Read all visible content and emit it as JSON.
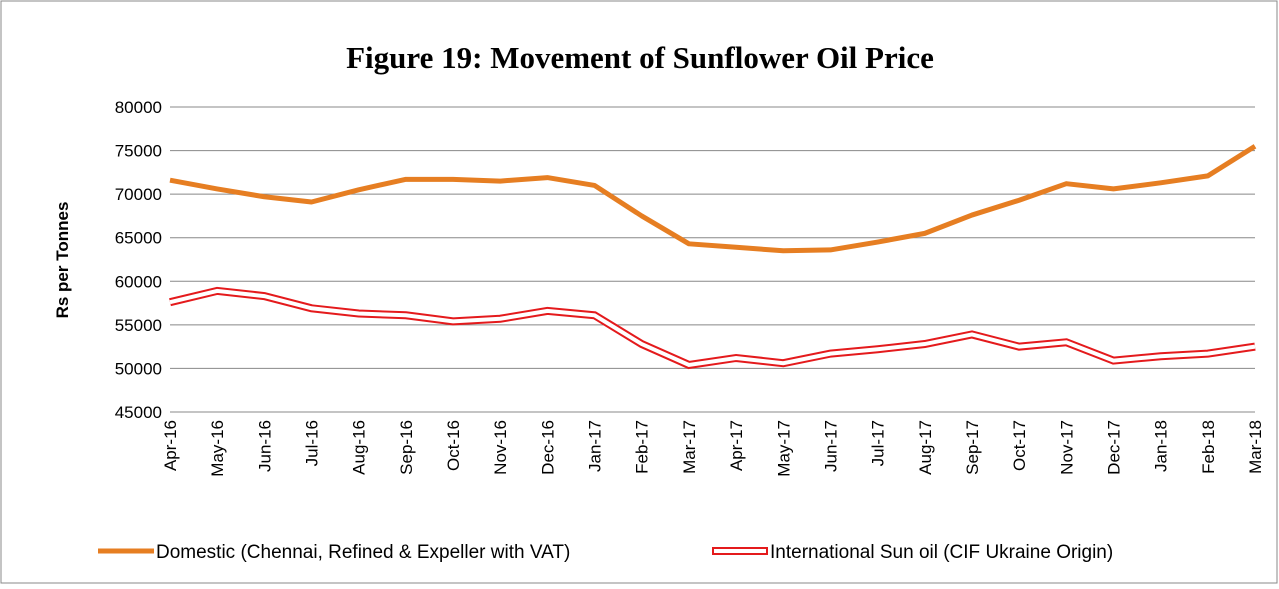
{
  "chart_data": {
    "type": "line",
    "title": "Figure 19: Movement of  Sunflower Oil Price",
    "y_label": "Rs per Tonnes",
    "categories": [
      "Apr-16",
      "May-16",
      "Jun-16",
      "Jul-16",
      "Aug-16",
      "Sep-16",
      "Oct-16",
      "Nov-16",
      "Dec-16",
      "Jan-17",
      "Feb-17",
      "Mar-17",
      "Apr-17",
      "May-17",
      "Jun-17",
      "Jul-17",
      "Aug-17",
      "Sep-17",
      "Oct-17",
      "Nov-17",
      "Dec-17",
      "Jan-18",
      "Feb-18",
      "Mar-18"
    ],
    "series": [
      {
        "name": "Domestic (Chennai, Refined & Expeller with VAT)",
        "color": "#e67e22",
        "values": [
          71600,
          70600,
          69700,
          69100,
          70500,
          71700,
          71700,
          71500,
          71900,
          71000,
          67500,
          64300,
          63900,
          63500,
          63600,
          64500,
          65500,
          67600,
          69300,
          71200,
          70600,
          71300,
          72100,
          75500
        ]
      },
      {
        "name": "International Sun oil (CIF Ukraine Origin)",
        "color": "#e41a1c",
        "values": [
          57600,
          58900,
          58300,
          56900,
          56300,
          56100,
          55400,
          55700,
          56600,
          56100,
          52800,
          50400,
          51200,
          50600,
          51700,
          52200,
          52800,
          53900,
          52500,
          53000,
          50900,
          51400,
          51700,
          52500
        ]
      }
    ],
    "ylim": [
      45000,
      80000
    ],
    "yticks": [
      45000,
      50000,
      55000,
      60000,
      65000,
      70000,
      75000,
      80000
    ],
    "grid": true,
    "legend": "bottom"
  }
}
